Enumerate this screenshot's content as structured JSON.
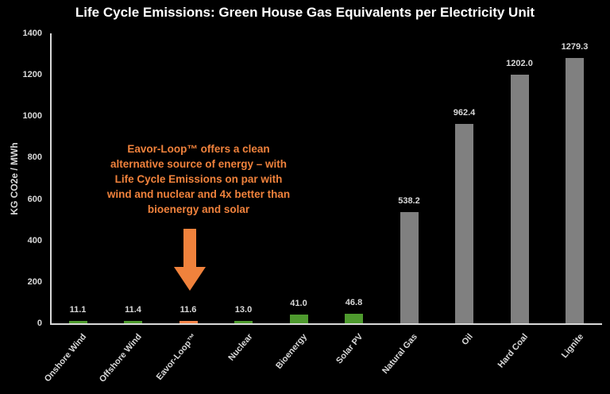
{
  "chart_data": {
    "type": "bar",
    "title": "Life Cycle Emissions: Green House Gas Equivalents per Electricity Unit",
    "xlabel": "",
    "ylabel": "KG CO2e / MWh",
    "ylim": [
      0,
      1400
    ],
    "yticks": [
      0,
      200,
      400,
      600,
      800,
      1000,
      1200,
      1400
    ],
    "grid": false,
    "legend": null,
    "categories": [
      "Onshore Wind",
      "Offshore Wind",
      "Eavor-Loop™",
      "Nuclear",
      "Bioenergy",
      "Solar PV",
      "Natural Gas",
      "Oil",
      "Hard Coal",
      "Lignite"
    ],
    "values": [
      11.1,
      11.4,
      11.6,
      13.0,
      41.0,
      46.8,
      538.2,
      962.4,
      1202.0,
      1279.3
    ],
    "value_labels": [
      "11.1",
      "11.4",
      "11.6",
      "13.0",
      "41.0",
      "46.8",
      "538.2",
      "962.4",
      "1202.0",
      "1279.3"
    ],
    "bar_colors": [
      "#4e9a2e",
      "#4e9a2e",
      "#f4854a",
      "#4e9a2e",
      "#4e9a2e",
      "#4e9a2e",
      "#808080",
      "#808080",
      "#808080",
      "#808080"
    ],
    "annotations": [
      {
        "text": "Eavor-Loop™ offers a clean alternative source of energy – with Life Cycle Emissions on par with wind and nuclear and 4x better than bioenergy and solar",
        "lines": [
          "Eavor-Loop™ offers a clean",
          "alternative source of energy – with",
          "Life Cycle Emissions on par with",
          "wind and nuclear and 4x better than",
          "bioenergy and solar"
        ],
        "color": "#f0823c",
        "arrow_target": "Eavor-Loop™"
      }
    ]
  },
  "colors": {
    "background": "#000000",
    "text": "#d9d9d9",
    "green": "#4e9a2e",
    "orange": "#f4854a",
    "gray": "#808080",
    "callout": "#f0823c"
  }
}
